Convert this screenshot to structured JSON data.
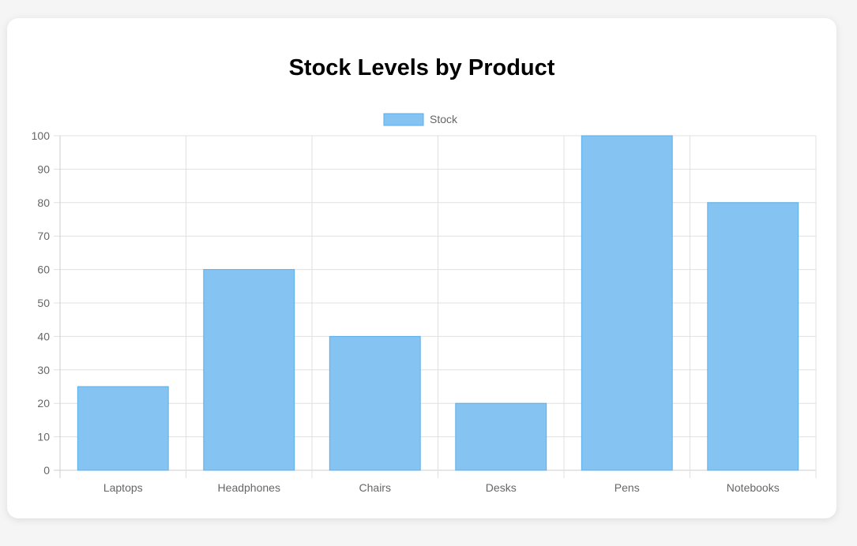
{
  "chart_data": {
    "type": "bar",
    "title": "Stock Levels by Product",
    "categories": [
      "Laptops",
      "Headphones",
      "Chairs",
      "Desks",
      "Pens",
      "Notebooks"
    ],
    "series": [
      {
        "name": "Stock",
        "values": [
          25,
          60,
          40,
          20,
          100,
          80
        ]
      }
    ],
    "ylim": [
      0,
      100
    ],
    "yticks": [
      0,
      10,
      20,
      30,
      40,
      50,
      60,
      70,
      80,
      90,
      100
    ],
    "xlabel": "",
    "ylabel": "",
    "grid": true,
    "legend_position": "top-center",
    "colors": {
      "bar_fill": "#85c4f2",
      "bar_border": "#5aaee8",
      "grid": "#e0e0e0",
      "axis": "#cccccc",
      "tick_text": "#666666"
    }
  }
}
